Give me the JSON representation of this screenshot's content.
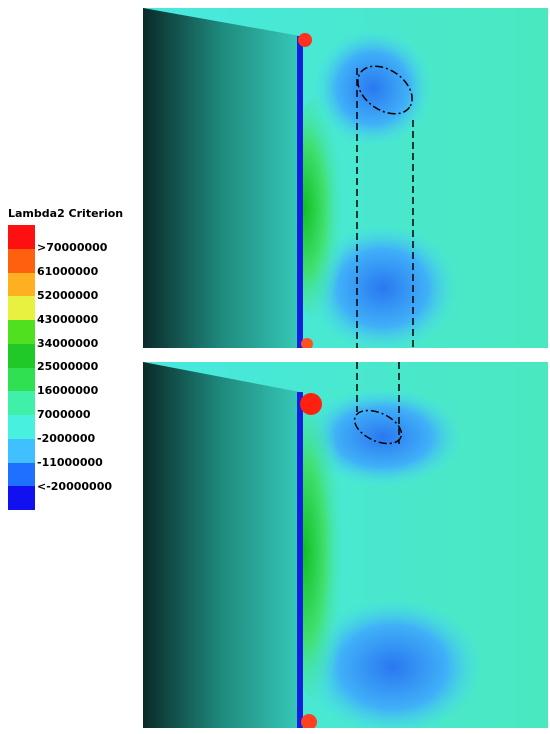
{
  "legend": {
    "title": "Lambda2 Criterion",
    "labels": [
      ">70000000",
      "61000000",
      "52000000",
      "43000000",
      "34000000",
      "25000000",
      "16000000",
      "7000000",
      "-2000000",
      "-11000000",
      "<-20000000"
    ]
  }
}
